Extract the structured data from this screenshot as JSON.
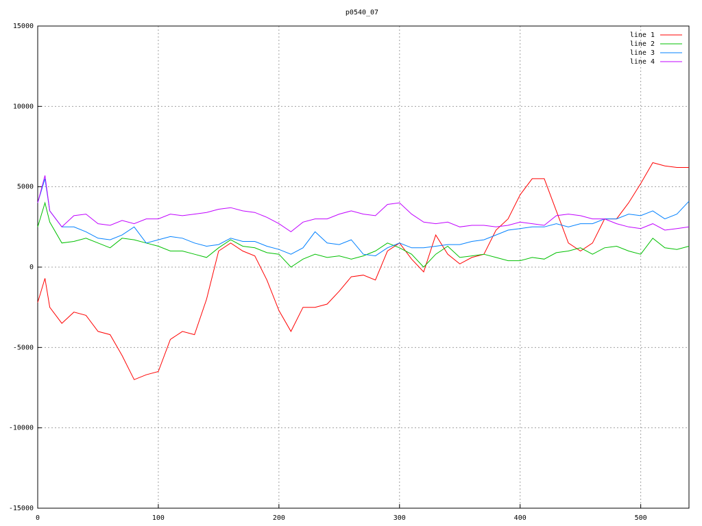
{
  "chart_data": {
    "type": "line",
    "title": "p0540_07",
    "x": [
      0,
      6,
      10,
      20,
      30,
      40,
      50,
      60,
      70,
      80,
      90,
      100,
      110,
      120,
      130,
      140,
      150,
      160,
      170,
      180,
      190,
      200,
      210,
      220,
      230,
      240,
      250,
      260,
      270,
      280,
      290,
      300,
      310,
      320,
      330,
      340,
      350,
      360,
      370,
      380,
      390,
      400,
      410,
      420,
      430,
      440,
      450,
      460,
      470,
      480,
      490,
      500,
      510,
      520,
      530,
      540
    ],
    "series": [
      {
        "name": "line 1",
        "color": "#ff0000",
        "values": [
          -2200,
          -700,
          -2500,
          -3500,
          -2800,
          -3000,
          -4000,
          -4200,
          -5500,
          -7000,
          -6700,
          -6500,
          -4500,
          -4000,
          -4200,
          -2000,
          1000,
          1500,
          1000,
          700,
          -800,
          -2700,
          -4000,
          -2500,
          -2500,
          -2300,
          -1500,
          -600,
          -500,
          -800,
          1000,
          1500,
          500,
          -300,
          2000,
          800,
          200,
          600,
          800,
          2300,
          3000,
          4500,
          5500,
          5500,
          3500,
          1500,
          1000,
          1500,
          3000,
          3000,
          4000,
          5200,
          6500,
          6300,
          6200,
          6200
        ]
      },
      {
        "name": "line 2",
        "color": "#00c000",
        "values": [
          2500,
          4000,
          2800,
          1500,
          1600,
          1800,
          1500,
          1200,
          1800,
          1700,
          1500,
          1300,
          1000,
          1000,
          800,
          600,
          1200,
          1700,
          1300,
          1200,
          900,
          800,
          0,
          500,
          800,
          600,
          700,
          500,
          700,
          1000,
          1500,
          1200,
          800,
          0,
          800,
          1300,
          600,
          700,
          800,
          600,
          400,
          400,
          600,
          500,
          900,
          1000,
          1200,
          800,
          1200,
          1300,
          1000,
          800,
          1800,
          1200,
          1100,
          1300
        ]
      },
      {
        "name": "line 3",
        "color": "#0080ff",
        "values": [
          4000,
          5500,
          3500,
          2500,
          2500,
          2200,
          1800,
          1700,
          2000,
          2500,
          1500,
          1700,
          1900,
          1800,
          1500,
          1300,
          1400,
          1800,
          1600,
          1600,
          1300,
          1100,
          800,
          1200,
          2200,
          1500,
          1400,
          1700,
          800,
          700,
          1200,
          1500,
          1200,
          1200,
          1300,
          1400,
          1400,
          1600,
          1700,
          2000,
          2300,
          2400,
          2500,
          2500,
          2700,
          2500,
          2700,
          2700,
          3000,
          3000,
          3300,
          3200,
          3500,
          3000,
          3300,
          4100
        ]
      },
      {
        "name": "line 4",
        "color": "#c000ff",
        "values": [
          4000,
          5700,
          3500,
          2500,
          3200,
          3300,
          2700,
          2600,
          2900,
          2700,
          3000,
          3000,
          3300,
          3200,
          3300,
          3400,
          3600,
          3700,
          3500,
          3400,
          3100,
          2700,
          2200,
          2800,
          3000,
          3000,
          3300,
          3500,
          3300,
          3200,
          3900,
          4000,
          3300,
          2800,
          2700,
          2800,
          2500,
          2600,
          2600,
          2500,
          2600,
          2800,
          2700,
          2600,
          3200,
          3300,
          3200,
          3000,
          3000,
          2700,
          2500,
          2400,
          2700,
          2300,
          2400,
          2500
        ]
      }
    ],
    "xlim": [
      0,
      540
    ],
    "xticks": [
      0,
      100,
      200,
      300,
      400,
      500
    ],
    "ylim": [
      -15000,
      15000
    ],
    "yticks": [
      -15000,
      -10000,
      -5000,
      0,
      5000,
      10000,
      15000
    ],
    "grid": true,
    "legend": "top-right"
  }
}
